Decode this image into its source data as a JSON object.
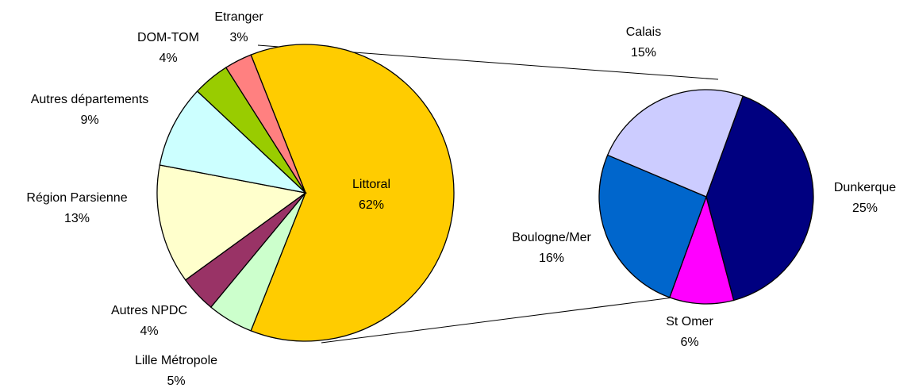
{
  "chart_data": [
    {
      "type": "pie",
      "categories": [
        "Littoral",
        "Lille Métropole",
        "Autres NPDC",
        "Région Parsienne",
        "Autres départements",
        "DOM-TOM",
        "Etranger"
      ],
      "values": [
        62,
        5,
        4,
        13,
        9,
        4,
        3
      ],
      "value_labels": [
        "62%",
        "5%",
        "4%",
        "13%",
        "9%",
        "4%",
        "3%"
      ],
      "colors": [
        "#ffcc00",
        "#ccffcc",
        "#993366",
        "#ffffcc",
        "#ccffff",
        "#99cc00",
        "#ff8080"
      ]
    },
    {
      "type": "pie",
      "categories": [
        "Dunkerque",
        "St Omer",
        "Boulogne/Mer",
        "Calais"
      ],
      "values": [
        25,
        6,
        16,
        15
      ],
      "value_labels": [
        "25%",
        "6%",
        "16%",
        "15%"
      ],
      "colors": [
        "#000080",
        "#ff00ff",
        "#0066cc",
        "#ccccff"
      ]
    }
  ]
}
